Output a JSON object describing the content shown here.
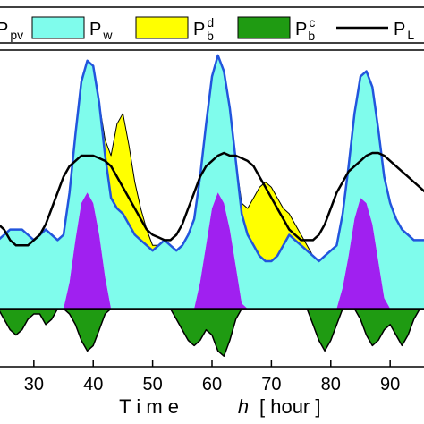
{
  "legend": {
    "items": [
      {
        "label": "P",
        "sub": "pv",
        "sup": "",
        "color": "#a020f0"
      },
      {
        "label": "P",
        "sub": "w",
        "sup": "",
        "color": "#7ffcec"
      },
      {
        "label": "P",
        "sub": "b",
        "sup": "d",
        "color": "#ffff00"
      },
      {
        "label": "P",
        "sub": "b",
        "sup": "c",
        "color": "#1f9b12"
      },
      {
        "label": "P",
        "sub": "L",
        "sup": "",
        "color": "#000000"
      }
    ]
  },
  "chart_data": {
    "type": "area",
    "xlabel_prefix": "T i m e",
    "xlabel_var": "h",
    "xlabel_unit": "[ hour ]",
    "ylabel": "",
    "xlim": [
      24,
      96
    ],
    "ylim": [
      -1.1,
      4.9
    ],
    "xticks": [
      30,
      40,
      50,
      60,
      70,
      80,
      90
    ],
    "xtick_labels": [
      "30",
      "40",
      "50",
      "60",
      "70",
      "80",
      "90"
    ],
    "grid": false,
    "colors": {
      "pv": "#a020f0",
      "wind": "#7ffcec",
      "discharge": "#ffff00",
      "charge": "#1f9b12",
      "load": "#000000",
      "top_outline": "#2255dd"
    },
    "x": [
      24,
      25,
      26,
      27,
      28,
      29,
      30,
      31,
      32,
      33,
      34,
      35,
      36,
      37,
      38,
      39,
      40,
      41,
      42,
      43,
      44,
      45,
      46,
      47,
      48,
      49,
      50,
      51,
      52,
      53,
      54,
      55,
      56,
      57,
      58,
      59,
      60,
      61,
      62,
      63,
      64,
      65,
      66,
      67,
      68,
      69,
      70,
      71,
      72,
      73,
      74,
      75,
      76,
      77,
      78,
      79,
      80,
      81,
      82,
      83,
      84,
      85,
      86,
      87,
      88,
      89,
      90,
      91,
      92,
      93,
      94,
      95,
      96
    ],
    "series": [
      {
        "key": "pv",
        "values": [
          0,
          0,
          0,
          0,
          0,
          0,
          0,
          0,
          0,
          0,
          0,
          0,
          0.5,
          1.3,
          2.0,
          2.2,
          2.0,
          1.4,
          0.6,
          0,
          0,
          0,
          0,
          0,
          0,
          0,
          0,
          0,
          0,
          0,
          0,
          0,
          0,
          0,
          0.5,
          1.2,
          1.9,
          2.2,
          2.0,
          1.5,
          0.8,
          0.1,
          0,
          0,
          0,
          0,
          0,
          0,
          0,
          0,
          0,
          0,
          0,
          0,
          0,
          0,
          0,
          0,
          0.4,
          1.0,
          1.7,
          2.1,
          2.0,
          1.6,
          0.9,
          0.2,
          0,
          0,
          0,
          0,
          0,
          0,
          0
        ]
      },
      {
        "key": "wind",
        "values": [
          1.3,
          1.4,
          1.5,
          1.5,
          1.5,
          1.4,
          1.3,
          1.4,
          1.5,
          1.4,
          1.3,
          1.4,
          1.7,
          2.0,
          2.3,
          2.5,
          2.6,
          2.5,
          2.3,
          2.1,
          1.9,
          1.8,
          1.6,
          1.4,
          1.3,
          1.2,
          1.1,
          1.2,
          1.3,
          1.2,
          1.1,
          1.2,
          1.4,
          1.7,
          2.0,
          2.3,
          2.5,
          2.6,
          2.5,
          2.3,
          2.0,
          1.7,
          1.4,
          1.2,
          1.0,
          0.9,
          0.9,
          1.0,
          1.2,
          1.4,
          1.3,
          1.2,
          1.1,
          1.0,
          0.9,
          1.0,
          1.1,
          1.2,
          1.4,
          1.7,
          2.0,
          2.3,
          2.5,
          2.6,
          2.5,
          2.3,
          2.0,
          1.7,
          1.5,
          1.4,
          1.3,
          1.3,
          1.3
        ]
      },
      {
        "key": "discharge",
        "values": [
          0,
          0,
          0,
          0,
          0,
          0,
          0,
          0,
          0,
          0,
          0,
          0,
          0,
          0,
          0,
          0,
          0,
          0,
          0.3,
          0.8,
          1.6,
          1.9,
          1.5,
          1.0,
          0.6,
          0.3,
          0.1,
          0,
          0,
          0,
          0,
          0,
          0,
          0,
          0,
          0,
          0,
          0,
          0,
          0,
          0,
          0.2,
          0.5,
          0.9,
          1.3,
          1.5,
          1.4,
          1.1,
          0.7,
          0.4,
          0.3,
          0.2,
          0.1,
          0,
          0,
          0,
          0,
          0,
          0,
          0,
          0,
          0,
          0,
          0,
          0,
          0,
          0,
          0,
          0,
          0,
          0,
          0,
          0
        ]
      },
      {
        "key": "charge",
        "values": [
          0,
          -0.2,
          -0.4,
          -0.5,
          -0.4,
          -0.2,
          -0.1,
          -0.1,
          -0.3,
          -0.2,
          0,
          0,
          -0.1,
          -0.3,
          -0.6,
          -0.8,
          -0.7,
          -0.4,
          -0.1,
          0,
          0,
          0,
          0,
          0,
          0,
          0,
          0,
          0,
          0,
          0,
          -0.2,
          -0.4,
          -0.6,
          -0.7,
          -0.6,
          -0.4,
          -0.5,
          -0.8,
          -0.9,
          -0.6,
          -0.2,
          0,
          0,
          0,
          0,
          0,
          0,
          0,
          0,
          0,
          0,
          0,
          0,
          -0.3,
          -0.6,
          -0.8,
          -0.6,
          -0.3,
          0,
          0,
          0,
          -0.2,
          -0.5,
          -0.7,
          -0.6,
          -0.4,
          -0.3,
          -0.5,
          -0.7,
          -0.5,
          -0.2,
          0,
          0
        ]
      },
      {
        "key": "load",
        "values": [
          1.6,
          1.5,
          1.3,
          1.2,
          1.2,
          1.2,
          1.3,
          1.4,
          1.6,
          1.9,
          2.2,
          2.5,
          2.7,
          2.8,
          2.9,
          2.9,
          2.9,
          2.85,
          2.8,
          2.7,
          2.5,
          2.3,
          2.1,
          1.9,
          1.7,
          1.5,
          1.4,
          1.35,
          1.3,
          1.3,
          1.4,
          1.6,
          1.9,
          2.2,
          2.5,
          2.7,
          2.8,
          2.9,
          2.95,
          2.9,
          2.9,
          2.85,
          2.8,
          2.7,
          2.5,
          2.3,
          2.1,
          1.9,
          1.7,
          1.5,
          1.4,
          1.3,
          1.3,
          1.3,
          1.4,
          1.6,
          1.9,
          2.2,
          2.4,
          2.6,
          2.7,
          2.8,
          2.9,
          2.95,
          2.95,
          2.9,
          2.8,
          2.7,
          2.6,
          2.5,
          2.4,
          2.3,
          2.2
        ]
      }
    ]
  }
}
